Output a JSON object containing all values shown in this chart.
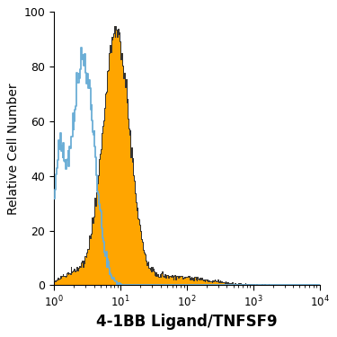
{
  "title": "",
  "xlabel": "4-1BB Ligand/TNFSF9",
  "ylabel": "Relative Cell Number",
  "xlim": [
    1,
    10000
  ],
  "ylim": [
    0,
    100
  ],
  "yticks": [
    0,
    20,
    40,
    60,
    80,
    100
  ],
  "xlabel_fontsize": 12,
  "ylabel_fontsize": 10,
  "xlabel_fontweight": "bold",
  "orange_color": "#FFA500",
  "orange_edge_color": "#2F2F2F",
  "blue_line_color": "#6BAED6",
  "background_color": "#FFFFFF",
  "orange_peak_y": 95,
  "blue_peak_y": 87,
  "orange_log_mean": 0.93,
  "orange_log_std": 0.2,
  "blue_log_mean": 0.44,
  "blue_log_std": 0.17,
  "n_orange": 60000,
  "n_blue": 30000,
  "seed": 99
}
